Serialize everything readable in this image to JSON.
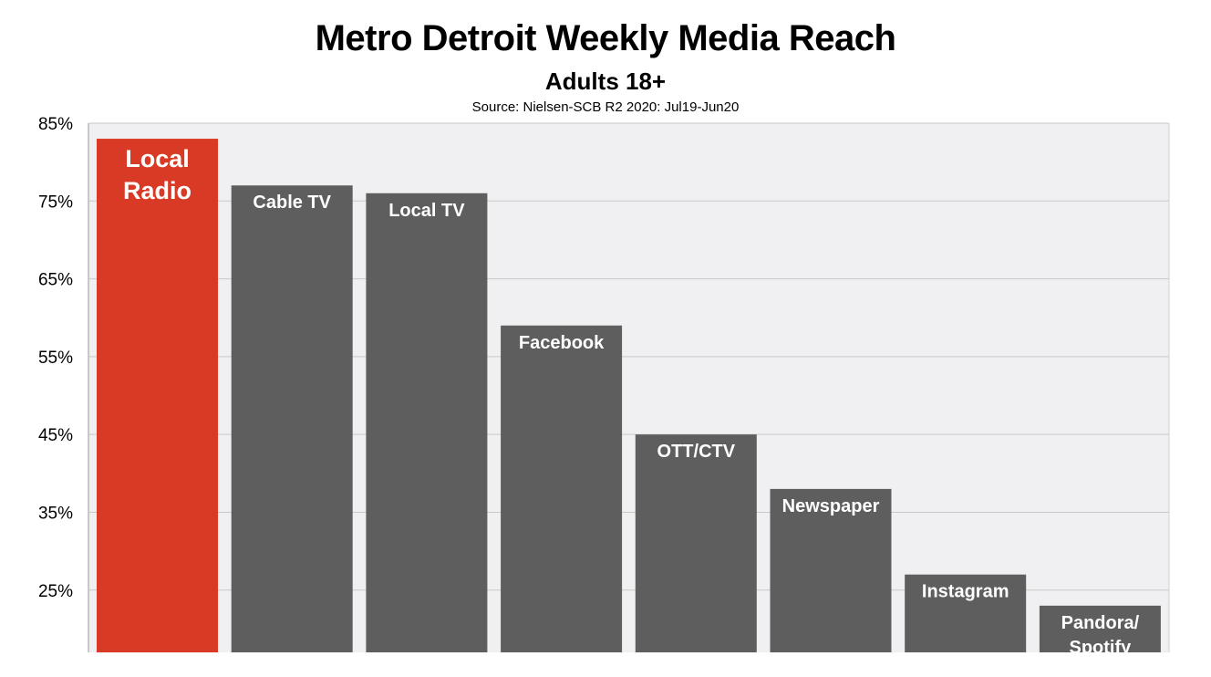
{
  "colors": {
    "plot_background": "#f0f0f2",
    "gridline": "#c8c8c8",
    "highlight_bar": "#d93a25",
    "default_bar": "#5e5e5e",
    "bar_label": "#ffffff"
  },
  "chart_data": {
    "type": "bar",
    "title": "Metro Detroit Weekly Media Reach",
    "subtitle": "Adults 18+",
    "source": "Source: Nielsen-SCB R2 2020: Jul19-Jun20",
    "xlabel": "",
    "ylabel": "",
    "ylim": [
      17,
      85
    ],
    "yticks": [
      85,
      75,
      65,
      55,
      45,
      35,
      25
    ],
    "ytick_labels": [
      "85%",
      "75%",
      "65%",
      "55%",
      "45%",
      "35%",
      "25%"
    ],
    "grid": true,
    "legend": "none",
    "categories": [
      "Local Radio",
      "Cable TV",
      "Local TV",
      "Facebook",
      "OTT/CTV",
      "Newspaper",
      "Instagram",
      "Pandora/ Spotify"
    ],
    "label_lines": [
      [
        "Local",
        "Radio"
      ],
      [
        "Cable TV"
      ],
      [
        "Local TV"
      ],
      [
        "Facebook"
      ],
      [
        "OTT/CTV"
      ],
      [
        "Newspaper"
      ],
      [
        "Instagram"
      ],
      [
        "Pandora/",
        "Spotify"
      ]
    ],
    "values": [
      83,
      77,
      76,
      59,
      45,
      38,
      27,
      23
    ],
    "highlight_index": 0
  }
}
